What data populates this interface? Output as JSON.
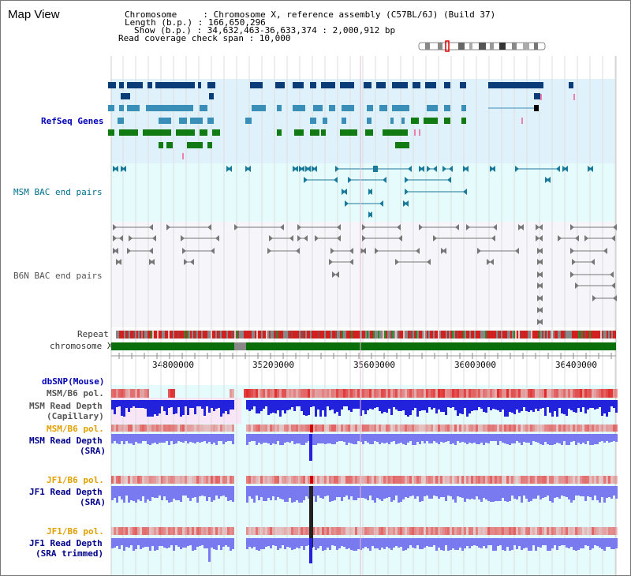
{
  "page": {
    "title": "Map View"
  },
  "info": {
    "chromosome_line": "Chromosome     : Chromosome X, reference assembly (C57BL/6J) (Build 37)",
    "length_line": "Length (b.p.) : 166,650,296",
    "show_line": "Show (b.p.) : 34,632,463-36,633,374 : 2,000,912 bp",
    "coverage_line": "Read coverage check span : 10,000"
  },
  "ruler": {
    "ticks": [
      "34800000",
      "35200000",
      "35600000",
      "36000000",
      "36400000"
    ]
  },
  "tracks": {
    "refseq": "RefSeq Genes",
    "msm_bac": "MSM BAC end pairs",
    "b6n_bac": "B6N BAC end pairs",
    "repeat": "Repeat",
    "chromosome": "chromosome X",
    "dbsnp": "dbSNP(Mouse)",
    "msm_b6_pol_1": "MSM/B6 pol.",
    "msm_read_depth_cap_1": "MSM Read Depth",
    "msm_read_depth_cap_2": "(Capillary)",
    "msm_b6_pol_2": "MSM/B6 pol.",
    "msm_read_depth_sra_1": "MSM Read Depth",
    "msm_read_depth_sra_2": "(SRA)",
    "jf1_b6_pol_1": "JF1/B6 pol.",
    "jf1_read_depth_sra_1": "JF1 Read Depth",
    "jf1_read_depth_sra_2": "(SRA)",
    "jf1_b6_pol_2": "JF1/B6 pol.",
    "jf1_read_depth_trim_1": "JF1 Read Depth",
    "jf1_read_depth_trim_2": "(SRA trimmed)"
  },
  "colors": {
    "refseq_bg": "#dff2fc",
    "bac_bg": "#e6fbfb",
    "b6n_bg": "#f6f6fa",
    "lower_bg": "#e6fbfb",
    "refseq_dark": "#0a3c78",
    "refseq_mid": "#3a8fb8",
    "refseq_green": "#127a12",
    "msm_bac": "#1a7a9a",
    "b6n_bac": "#777777",
    "chromosome": "#0a6e0a",
    "depth_blue": "#2222dd",
    "depth_light": "#7a7af0",
    "pol_red": "#e02020"
  }
}
